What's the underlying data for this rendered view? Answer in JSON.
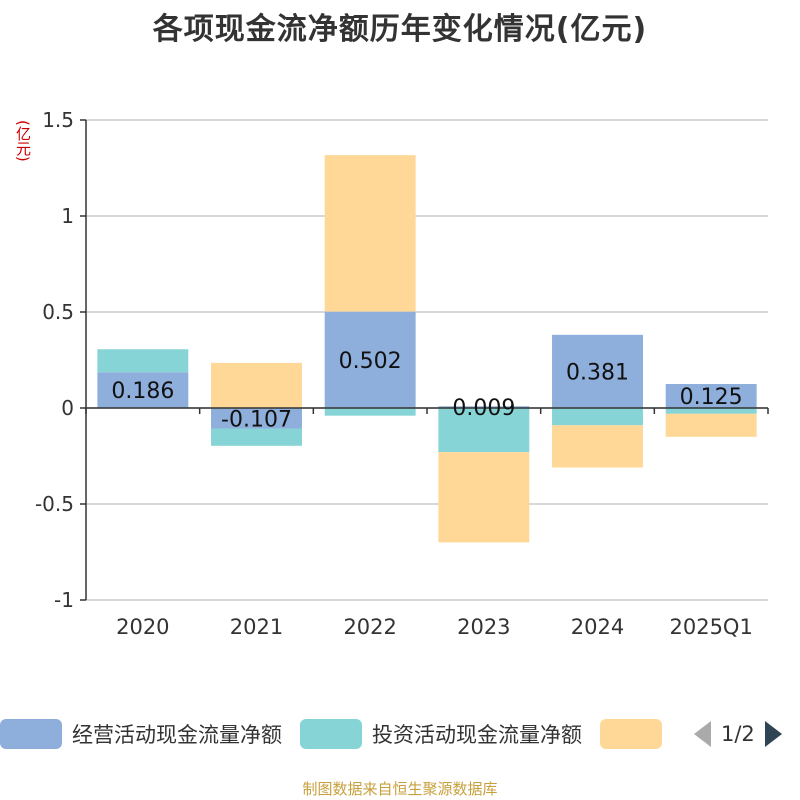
{
  "title": "各项现金流净额历年变化情况(亿元)",
  "unit": "(亿元)",
  "source": "制图数据来自恒生聚源数据库",
  "legend": {
    "items": [
      {
        "label": "经营活动现金流量净额",
        "color": "#8eaedb"
      },
      {
        "label": "投资活动现金流量净额",
        "color": "#86d4d6"
      },
      {
        "label": "",
        "color": "#ffd898"
      }
    ],
    "page": "1/2"
  },
  "chart_data": {
    "type": "bar",
    "stacked": true,
    "categories": [
      "2020",
      "2021",
      "2022",
      "2023",
      "2024",
      "2025Q1"
    ],
    "series": [
      {
        "name": "经营活动现金流量净额",
        "color": "#8eaedb",
        "values": [
          0.186,
          -0.107,
          0.502,
          0.009,
          0.381,
          0.125
        ]
      },
      {
        "name": "投资活动现金流量净额",
        "color": "#86d4d6",
        "values": [
          0.12,
          -0.09,
          -0.04,
          -0.23,
          -0.09,
          -0.03
        ]
      },
      {
        "color": "#ffd898",
        "values": [
          0.0,
          0.235,
          0.815,
          -0.47,
          -0.22,
          -0.12
        ]
      }
    ],
    "data_labels": [
      "0.186",
      "-0.107",
      "0.502",
      "0.009",
      "0.381",
      "0.125"
    ],
    "yticks": [
      "1.5",
      "1",
      "0.5",
      "0",
      "-0.5",
      "-1"
    ],
    "ylim": [
      -1,
      1.5
    ],
    "grid": true
  }
}
